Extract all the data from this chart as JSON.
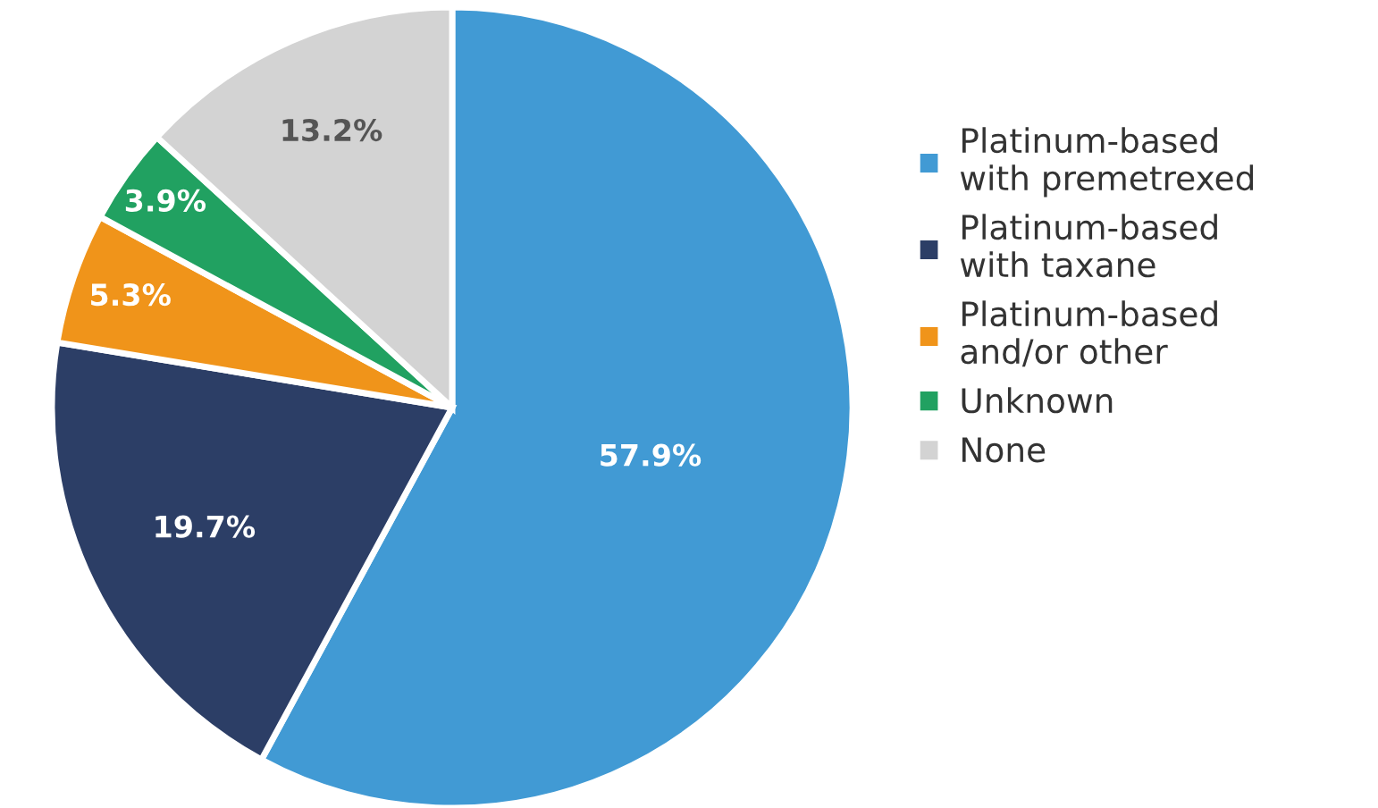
{
  "chart_data": {
    "type": "pie",
    "categories": [
      "Platinum-based with premetrexed",
      "Platinum-based with taxane",
      "Platinum-based and/or other",
      "Unknown",
      "None"
    ],
    "values": [
      57.9,
      19.7,
      5.3,
      3.9,
      13.2
    ],
    "colors": [
      "#419ad4",
      "#2c3e66",
      "#f0941a",
      "#21a161",
      "#d3d3d3"
    ],
    "value_labels": [
      "57.9%",
      "19.7%",
      "5.3%",
      "3.9%",
      "13.2%"
    ],
    "legend": "right"
  }
}
